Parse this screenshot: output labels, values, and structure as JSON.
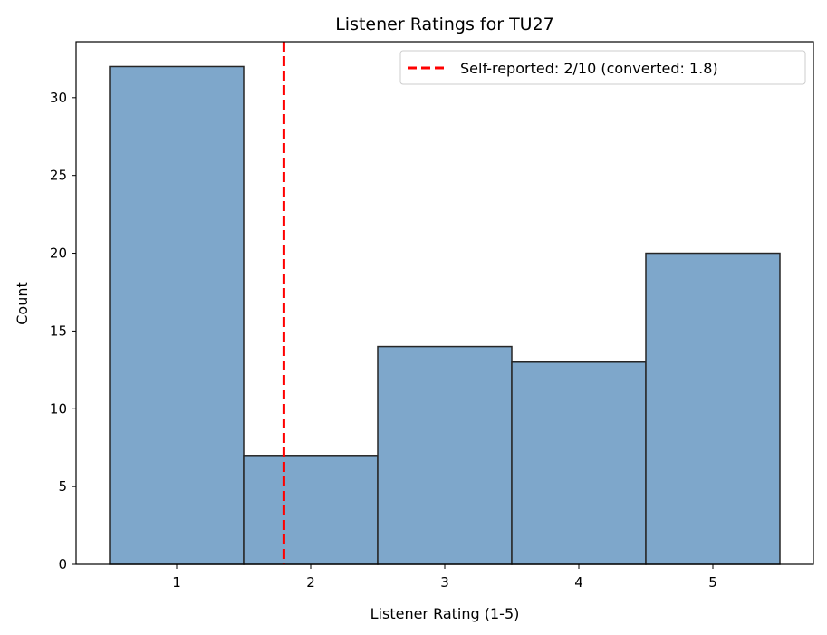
{
  "chart_data": {
    "type": "bar",
    "title": "Listener Ratings for TU27",
    "xlabel": "Listener Rating (1-5)",
    "ylabel": "Count",
    "categories": [
      "1",
      "2",
      "3",
      "4",
      "5"
    ],
    "x": [
      1,
      2,
      3,
      4,
      5
    ],
    "values": [
      32,
      7,
      14,
      13,
      20
    ],
    "xlim": [
      0.25,
      5.75
    ],
    "ylim": [
      0,
      33.6
    ],
    "xticks": [
      1,
      2,
      3,
      4,
      5
    ],
    "yticks": [
      0,
      5,
      10,
      15,
      20,
      25,
      30
    ],
    "grid": false,
    "bar_color": "#7ea7cb",
    "bar_edge_color": "#262626",
    "reference_line": {
      "x": 1.8,
      "label": "Self-reported: 2/10 (converted: 1.8)",
      "color": "#ff0000",
      "style": "dashed"
    },
    "legend": {
      "placement": "top-right",
      "entries": [
        "Self-reported: 2/10 (converted: 1.8)"
      ]
    }
  }
}
